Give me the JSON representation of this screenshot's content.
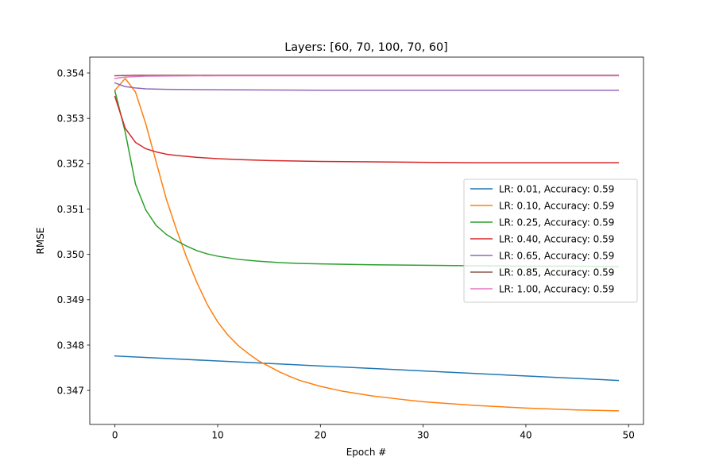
{
  "chart_data": {
    "type": "line",
    "title": "Layers: [60, 70, 100, 70, 60]",
    "xlabel": "Epoch #",
    "ylabel": "RMSE",
    "xlim": [
      -2.45,
      51.45
    ],
    "ylim": [
      0.34625,
      0.35435
    ],
    "xticks": [
      0,
      10,
      20,
      30,
      40,
      50
    ],
    "yticks": [
      0.347,
      0.348,
      0.349,
      0.35,
      0.351,
      0.352,
      0.353,
      0.354
    ],
    "ytick_labels": [
      "0.347",
      "0.348",
      "0.349",
      "0.350",
      "0.351",
      "0.352",
      "0.353",
      "0.354"
    ],
    "grid": false,
    "legend_position": "center-right",
    "series": [
      {
        "name": "LR: 0.01, Accuracy: 0.59",
        "color": "#1f77b4",
        "points": [
          [
            0,
            0.34776
          ],
          [
            49,
            0.34722
          ]
        ]
      },
      {
        "name": "LR: 0.10, Accuracy: 0.59",
        "color": "#ff7f0e",
        "points": [
          [
            0,
            0.35362
          ],
          [
            1,
            0.35388
          ],
          [
            2,
            0.35358
          ],
          [
            3,
            0.35288
          ],
          [
            4,
            0.35205
          ],
          [
            5,
            0.35122
          ],
          [
            6,
            0.35054
          ],
          [
            7,
            0.34992
          ],
          [
            8,
            0.34937
          ],
          [
            9,
            0.34889
          ],
          [
            10,
            0.34851
          ],
          [
            11,
            0.34822
          ],
          [
            12,
            0.34799
          ],
          [
            13,
            0.34781
          ],
          [
            14,
            0.34765
          ],
          [
            15,
            0.34753
          ],
          [
            16,
            0.34741
          ],
          [
            17,
            0.34731
          ],
          [
            18,
            0.34722
          ],
          [
            20,
            0.34709
          ],
          [
            22,
            0.34699
          ],
          [
            25,
            0.34688
          ],
          [
            28,
            0.3468
          ],
          [
            30,
            0.34675
          ],
          [
            35,
            0.34667
          ],
          [
            40,
            0.34661
          ],
          [
            45,
            0.34657
          ],
          [
            49,
            0.34655
          ]
        ]
      },
      {
        "name": "LR: 0.25, Accuracy: 0.59",
        "color": "#2ca02c",
        "points": [
          [
            0,
            0.3536
          ],
          [
            1,
            0.3527
          ],
          [
            2,
            0.35155
          ],
          [
            3,
            0.35098
          ],
          [
            4,
            0.35064
          ],
          [
            5,
            0.35044
          ],
          [
            6,
            0.3503
          ],
          [
            7,
            0.35018
          ],
          [
            8,
            0.35008
          ],
          [
            9,
            0.35001
          ],
          [
            10,
            0.34996
          ],
          [
            12,
            0.34989
          ],
          [
            14,
            0.34985
          ],
          [
            16,
            0.34982
          ],
          [
            18,
            0.3498
          ],
          [
            20,
            0.34979
          ],
          [
            25,
            0.34977
          ],
          [
            30,
            0.34976
          ],
          [
            35,
            0.34975
          ],
          [
            40,
            0.34974
          ],
          [
            45,
            0.34974
          ],
          [
            49,
            0.34973
          ]
        ]
      },
      {
        "name": "LR: 0.40, Accuracy: 0.59",
        "color": "#d62728",
        "points": [
          [
            0,
            0.35348
          ],
          [
            1,
            0.35278
          ],
          [
            2,
            0.35247
          ],
          [
            3,
            0.35233
          ],
          [
            4,
            0.35226
          ],
          [
            5,
            0.35221
          ],
          [
            6,
            0.35218
          ],
          [
            7,
            0.35216
          ],
          [
            8,
            0.35214
          ],
          [
            10,
            0.35211
          ],
          [
            12,
            0.35209
          ],
          [
            15,
            0.35207
          ],
          [
            20,
            0.35205
          ],
          [
            25,
            0.35204
          ],
          [
            30,
            0.35203
          ],
          [
            35,
            0.35202
          ],
          [
            40,
            0.35202
          ],
          [
            45,
            0.35202
          ],
          [
            49,
            0.35202
          ]
        ]
      },
      {
        "name": "LR: 0.65, Accuracy: 0.59",
        "color": "#9467bd",
        "points": [
          [
            0,
            0.35378
          ],
          [
            1,
            0.3537
          ],
          [
            2,
            0.35367
          ],
          [
            3,
            0.35365
          ],
          [
            5,
            0.35364
          ],
          [
            10,
            0.35363
          ],
          [
            20,
            0.35362
          ],
          [
            30,
            0.35362
          ],
          [
            40,
            0.35362
          ],
          [
            49,
            0.35362
          ]
        ]
      },
      {
        "name": "LR: 0.85, Accuracy: 0.59",
        "color": "#8c564b",
        "points": [
          [
            0,
            0.35394
          ],
          [
            2,
            0.35395
          ],
          [
            5,
            0.35395
          ],
          [
            20,
            0.35395
          ],
          [
            49,
            0.35395
          ]
        ]
      },
      {
        "name": "LR: 1.00, Accuracy: 0.59",
        "color": "#e377c2",
        "points": [
          [
            0,
            0.35388
          ],
          [
            1,
            0.35391
          ],
          [
            3,
            0.35393
          ],
          [
            10,
            0.35394
          ],
          [
            49,
            0.35394
          ]
        ]
      }
    ]
  }
}
